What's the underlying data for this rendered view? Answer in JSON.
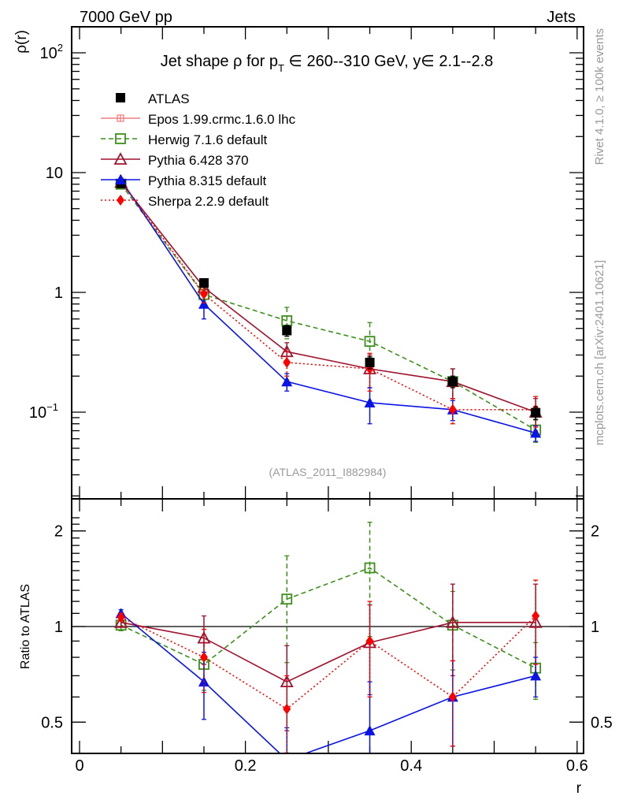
{
  "header": {
    "left": "7000 GeV pp",
    "right": "Jets"
  },
  "side_labels": {
    "rivet": "Rivet 4.1.0, ≥ 100k events",
    "mcplots": "mcplots.cern.ch [arXiv:2401.10621]"
  },
  "chart_data": [
    {
      "type": "line",
      "panel": "main",
      "title": "Jet shape ρ for p_T ∈ 260--310 GeV, y∈ 2.1--2.8",
      "title_parts": {
        "pre": "Jet shape ρ for p",
        "sub": "T",
        "post": " ∈ 260--310 GeV, y∈ 2.1--2.8"
      },
      "annotation": "(ATLAS_2011_I882984)",
      "xlabel": "r",
      "ylabel": "ρ(r)",
      "yscale": "log",
      "xlim": [
        -0.01,
        0.61
      ],
      "ylim": [
        0.022,
        160
      ],
      "yticks": [
        {
          "value": 100,
          "base": "10",
          "exp": "2"
        },
        {
          "value": 10,
          "base": "10",
          "exp": ""
        },
        {
          "value": 1,
          "base": "1",
          "exp": ""
        },
        {
          "value": 0.1,
          "base": "10",
          "exp": "−1"
        }
      ],
      "x": [
        0.05,
        0.15,
        0.25,
        0.35,
        0.45,
        0.55
      ],
      "legend_position": "top-left",
      "series": [
        {
          "name": "ATLAS",
          "color": "#000000",
          "marker": "filled-square",
          "line": "none",
          "values": [
            8.1,
            1.2,
            0.48,
            0.26,
            0.18,
            0.099
          ],
          "err": [
            0.4,
            0.1,
            0.05,
            0.03,
            0.02,
            0.012
          ]
        },
        {
          "name": "Epos 1.99.crmc.1.6.0 lhc",
          "color": "#f08080",
          "marker": "cross-square",
          "line": "solid",
          "values": [],
          "err": []
        },
        {
          "name": "Herwig 7.1.6 default",
          "color": "#3d8f1a",
          "marker": "open-square",
          "line": "dashed",
          "values": [
            8.0,
            0.96,
            0.58,
            0.39,
            0.18,
            0.071
          ],
          "err": [
            0.3,
            0.1,
            0.17,
            0.17,
            0.05,
            0.015
          ]
        },
        {
          "name": "Pythia 6.428 370",
          "color": "#a0122e",
          "marker": "open-triangle",
          "line": "solid",
          "values": [
            8.3,
            1.1,
            0.32,
            0.23,
            0.18,
            0.1
          ],
          "err": [
            0.3,
            0.15,
            0.06,
            0.07,
            0.05,
            0.03
          ]
        },
        {
          "name": "Pythia 8.315 default",
          "color": "#0a14e6",
          "marker": "filled-triangle",
          "line": "solid",
          "values": [
            8.7,
            0.8,
            0.18,
            0.12,
            0.105,
            0.067
          ],
          "err": [
            0.3,
            0.2,
            0.03,
            0.04,
            0.02,
            0.01
          ]
        },
        {
          "name": "Sherpa 2.2.9 default",
          "color": "#ff0000",
          "marker": "filled-diamond",
          "line": "dotted",
          "values": [
            8.5,
            0.97,
            0.26,
            0.23,
            0.105,
            0.105
          ],
          "err": [
            0.3,
            0.15,
            0.06,
            0.08,
            0.025,
            0.03
          ]
        }
      ]
    },
    {
      "type": "line",
      "panel": "ratio",
      "xlabel": "r",
      "ylabel": "Ratio to ATLAS",
      "yscale": "log",
      "xlim": [
        -0.01,
        0.61
      ],
      "ylim": [
        0.44,
        2.3
      ],
      "xticks": [
        0,
        0.2,
        0.4,
        0.6
      ],
      "xtick_labels": [
        "0",
        "0.2",
        "0.4",
        "0.6"
      ],
      "yticks": [
        0.5,
        1,
        2
      ],
      "ytick_labels": [
        "0.5",
        "1",
        "2"
      ],
      "reference_line": 1,
      "x": [
        0.05,
        0.15,
        0.25,
        0.35,
        0.45,
        0.55
      ],
      "series": [
        {
          "name": "Herwig 7.1.6 default",
          "color": "#3d8f1a",
          "marker": "open-square",
          "line": "dashed",
          "values": [
            1.01,
            0.76,
            1.22,
            1.53,
            1.01,
            0.74
          ],
          "err": [
            0.04,
            0.13,
            0.45,
            0.6,
            0.28,
            0.15
          ]
        },
        {
          "name": "Pythia 6.428 370",
          "color": "#a0122e",
          "marker": "open-triangle",
          "line": "solid",
          "values": [
            1.03,
            0.92,
            0.67,
            0.89,
            1.03,
            1.03
          ],
          "err": [
            0.03,
            0.16,
            0.2,
            0.28,
            0.33,
            0.33
          ]
        },
        {
          "name": "Pythia 8.315 default",
          "color": "#0a14e6",
          "marker": "filled-triangle",
          "line": "solid",
          "values": [
            1.1,
            0.67,
            0.38,
            0.47,
            0.6,
            0.7
          ],
          "err": [
            0.03,
            0.16,
            0.1,
            0.2,
            0.18,
            0.1
          ]
        },
        {
          "name": "Sherpa 2.2.9 default",
          "color": "#ff0000",
          "marker": "filled-diamond",
          "line": "dotted",
          "values": [
            1.07,
            0.8,
            0.55,
            0.9,
            0.6,
            1.08
          ],
          "err": [
            0.03,
            0.18,
            0.15,
            0.3,
            0.18,
            0.32
          ]
        }
      ]
    }
  ]
}
